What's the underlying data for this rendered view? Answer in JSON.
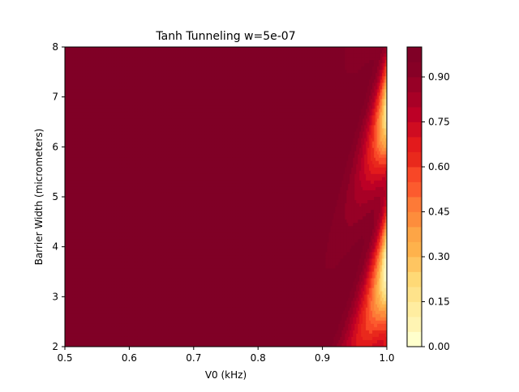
{
  "chart_data": {
    "type": "contourf",
    "title": "Tanh Tunneling w=5e-07",
    "xlabel": "V0 (kHz)",
    "ylabel": "Barrier Width (micrometers)",
    "xlim": [
      0.5,
      1.0
    ],
    "ylim": [
      2,
      8
    ],
    "x_ticks": [
      "0.5",
      "0.6",
      "0.7",
      "0.8",
      "0.9",
      "1.0"
    ],
    "y_ticks": [
      "2",
      "3",
      "4",
      "5",
      "6",
      "7",
      "8"
    ],
    "colorbar": {
      "colormap": "YlOrRd",
      "range": [
        0.0,
        1.0
      ],
      "num_levels": 20,
      "ticks": [
        "0.00",
        "0.15",
        "0.30",
        "0.45",
        "0.60",
        "0.75",
        "0.90"
      ],
      "colors": [
        "#ffffcc",
        "#fff4b3",
        "#ffeda0",
        "#fee38b",
        "#fed976",
        "#fec561",
        "#feb24c",
        "#fda546",
        "#fd8d3c",
        "#fd7a37",
        "#fc5b2e",
        "#f84727",
        "#e9291c",
        "#e31a1c",
        "#cf0c21",
        "#bd0026",
        "#a80026",
        "#970026",
        "#870026",
        "#800026"
      ]
    },
    "field_description": "Transmission ~1 across most of the domain; drops sharply near V0=1.0 kHz, with oscillating resonance lobes between 0.88 and 1.0 kHz."
  }
}
